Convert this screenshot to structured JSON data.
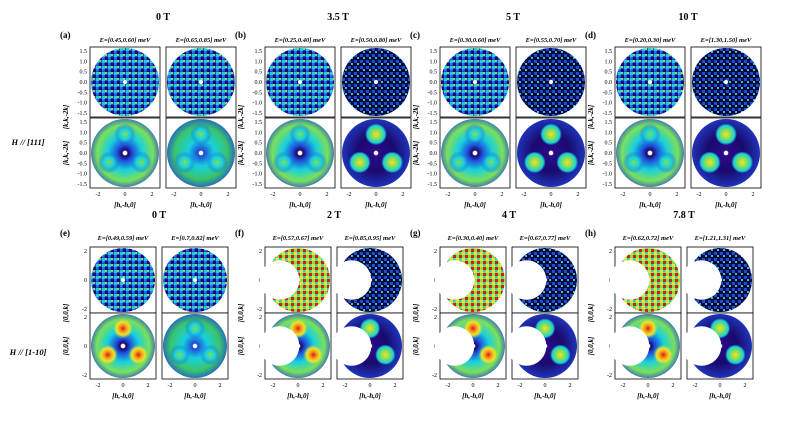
{
  "rows": [
    {
      "label": "H // [111]",
      "ylabel": "[k,k,-2k]",
      "xlabel": "[h,-h,0]",
      "xticks": [
        "-2",
        "0",
        "2"
      ],
      "yticks": [
        "1.5",
        "1.0",
        "0.5",
        "0.0",
        "-0.5",
        "-1.0",
        "-1.5"
      ],
      "groups": [
        {
          "panel": "(a)",
          "field": "0 T",
          "e1": "E=[0.45,0.60] meV",
          "e2": "E=[0.65,0.85] meV"
        },
        {
          "panel": "(b)",
          "field": "3.5 T",
          "e1": "E=[0.25,0.40] meV",
          "e2": "E=[0.50,0.80] meV"
        },
        {
          "panel": "(c)",
          "field": "5 T",
          "e1": "E=[0.30,0.60] meV",
          "e2": "E=[0.55,0.70] meV"
        },
        {
          "panel": "(d)",
          "field": "10 T",
          "e1": "E=[0.20,0.30] meV",
          "e2": "E=[1.30,1.50] meV"
        }
      ]
    },
    {
      "label": "H // [1-10]",
      "ylabel": "[0,0,k]",
      "xlabel": "[h,-h,0]",
      "xticks": [
        "-2",
        "0",
        "2"
      ],
      "yticks": [
        "2",
        "0",
        "-2"
      ],
      "groups": [
        {
          "panel": "(e)",
          "field": "0 T",
          "e1": "E=[0.49,0.59] meV",
          "e2": "E=[0.7,0.82] meV"
        },
        {
          "panel": "(f)",
          "field": "2 T",
          "e1": "E=[0.57,0.67] meV",
          "e2": "E=[0.85,0.95] meV"
        },
        {
          "panel": "(g)",
          "field": "4 T",
          "e1": "E=[0.30,0.40] meV",
          "e2": "E=[0.67,0.77] meV"
        },
        {
          "panel": "(h)",
          "field": "7.8 T",
          "e1": "E=[0.62,0.72] meV",
          "e2": "E=[1.21,1.31] meV"
        }
      ]
    }
  ],
  "colors": {
    "dark": "#1b0a6e",
    "blue": "#1f4bd8",
    "cyan": "#16d0e0",
    "green": "#7be05a",
    "yellow": "#f2e22a",
    "red": "#d81d10"
  }
}
